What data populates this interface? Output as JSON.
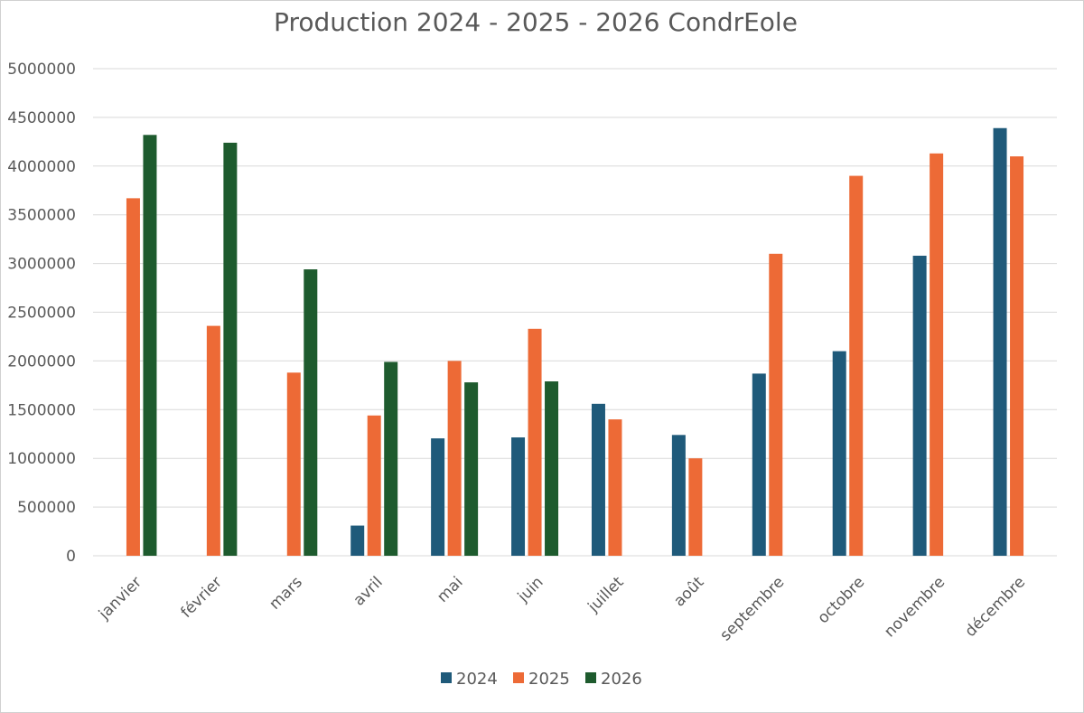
{
  "chart_data": {
    "type": "bar",
    "title": "Production 2024 - 2025 - 2026 CondrEole",
    "xlabel": "",
    "ylabel": "",
    "categories": [
      "janvier",
      "février",
      "mars",
      "avril",
      "mai",
      "juin",
      "juillet",
      "août",
      "septembre",
      "octobre",
      "novembre",
      "décembre"
    ],
    "series": [
      {
        "name": "2024",
        "color": "#1f5a7a",
        "values": [
          null,
          null,
          null,
          310000,
          1205000,
          1215000,
          1560000,
          1240000,
          1870000,
          2100000,
          3080000,
          4390000
        ]
      },
      {
        "name": "2025",
        "color": "#ed6a36",
        "values": [
          3670000,
          2360000,
          1880000,
          1440000,
          2000000,
          2330000,
          1400000,
          1000000,
          3100000,
          3900000,
          4130000,
          4100000
        ]
      },
      {
        "name": "2026",
        "color": "#1e5b2e",
        "values": [
          4320000,
          4240000,
          2940000,
          1990000,
          1780000,
          1790000,
          null,
          null,
          null,
          null,
          null,
          null
        ]
      }
    ],
    "ylim": [
      0,
      5000000
    ],
    "yticks": [
      0,
      500000,
      1000000,
      1500000,
      2000000,
      2500000,
      3000000,
      3500000,
      4000000,
      4500000,
      5000000
    ],
    "ytick_labels": [
      "0",
      "500000",
      "1000000",
      "1500000",
      "2000000",
      "2500000",
      "3000000",
      "3500000",
      "4000000",
      "4500000",
      "5000000"
    ],
    "grid": true,
    "legend_position": "bottom"
  }
}
